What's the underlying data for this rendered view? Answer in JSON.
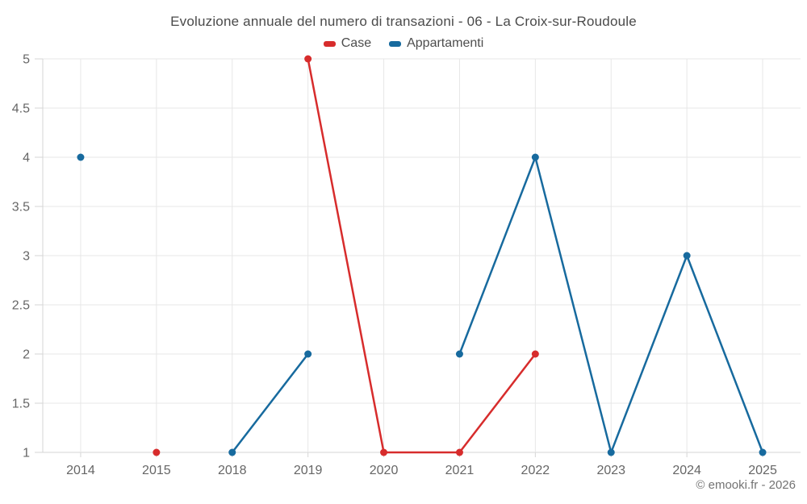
{
  "chart": {
    "credit": "© emooki.fr - 2026"
  },
  "chart_data": {
    "type": "line",
    "title": "Evoluzione annuale del numero di transazioni - 06 - La Croix-sur-Roudoule",
    "categories": [
      "2014",
      "2015",
      "2018",
      "2019",
      "2020",
      "2021",
      "2022",
      "2023",
      "2024",
      "2025"
    ],
    "series": [
      {
        "name": "Case",
        "color": "#d72c2c",
        "values": [
          null,
          1,
          null,
          5,
          1,
          1,
          2,
          null,
          null,
          null
        ]
      },
      {
        "name": "Appartamenti",
        "color": "#176a9e",
        "values": [
          4,
          null,
          1,
          2,
          null,
          2,
          4,
          1,
          3,
          1
        ]
      }
    ],
    "ylim": [
      1,
      5
    ],
    "ytick_step": 0.5,
    "grid": true,
    "legend_position": "top",
    "xlabel": "",
    "ylabel": "",
    "colors": {
      "grid": "#e7e7e7",
      "axis": "#d6d6d6",
      "tick_label": "#666666",
      "title": "#4a4a4a",
      "background": "#ffffff"
    }
  }
}
